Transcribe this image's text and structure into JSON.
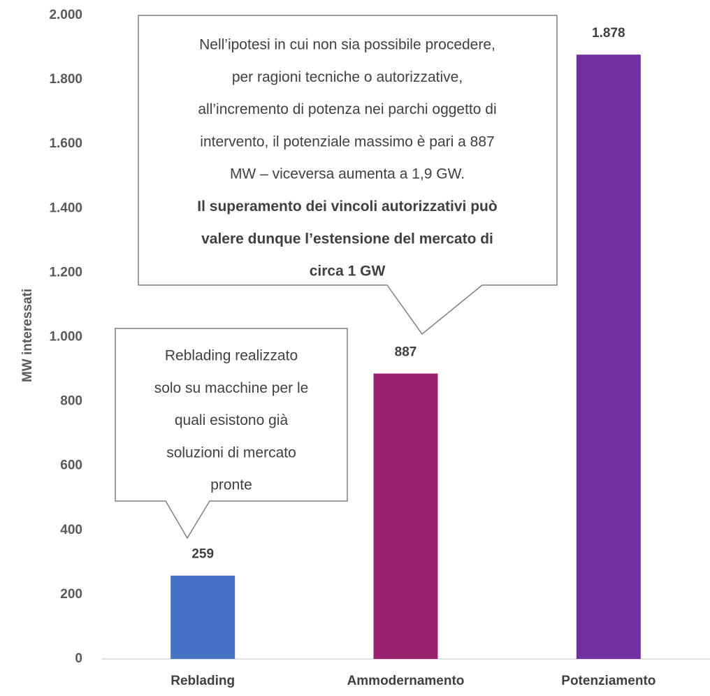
{
  "chart_data": {
    "type": "bar",
    "y_axis_label": "MW interessati",
    "categories": [
      "Reblading",
      "Ammodernamento",
      "Potenziamento"
    ],
    "values": [
      259,
      887,
      1878
    ],
    "value_labels": [
      "259",
      "887",
      "1.878"
    ],
    "colors": [
      "#4472c4",
      "#9b2271",
      "#7030a0"
    ],
    "ylim": [
      0,
      2000
    ],
    "yticks": [
      0,
      200,
      400,
      600,
      800,
      {
        "value": 1000,
        "label": "1.000"
      },
      {
        "value": 1200,
        "label": "1.200"
      },
      {
        "value": 1400,
        "label": "1.400"
      },
      {
        "value": 1600,
        "label": "1.600"
      },
      {
        "value": 1800,
        "label": "1.800"
      },
      {
        "value": 2000,
        "label": "2.000"
      }
    ],
    "grid": false,
    "annotations": [
      {
        "lines": [
          "Reblading realizzato",
          "solo su macchine per le",
          "quali esistono già",
          "soluzioni di mercato",
          "pronte"
        ]
      },
      {
        "lines": [
          "Nell’ipotesi in cui non sia possibile procedere,",
          "per ragioni tecniche o autorizzative,",
          "all’incremento di potenza nei parchi oggetto di",
          "intervento, il potenziale massimo è pari a 887",
          "MW – viceversa aumenta a 1,9 GW."
        ],
        "bold_lines": [
          "Il superamento dei vincoli autorizzativi può",
          "valere dunque l’estensione del mercato di",
          "circa 1 GW"
        ]
      }
    ]
  }
}
